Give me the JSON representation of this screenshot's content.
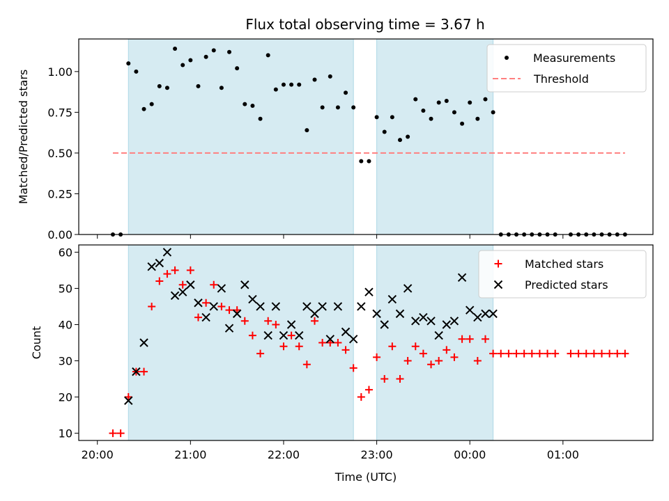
{
  "title": "Flux total observing time = 3.67 h",
  "colors": {
    "band": "#add8e6",
    "measurement": "#000000",
    "threshold": "#ff7f7f",
    "matched": "#ff0000",
    "predicted": "#000000"
  },
  "chart_data": [
    {
      "type": "scatter",
      "ylabel": "Matched/Predicted stars",
      "ylim": [
        0,
        1.2
      ],
      "yticks": [
        "0.00",
        "0.25",
        "0.50",
        "0.75",
        "1.00"
      ],
      "xlim": [
        "20:00",
        "01:50"
      ],
      "shaded_intervals": [
        [
          "20:20",
          "22:45"
        ],
        [
          "23:00",
          "00:15"
        ]
      ],
      "threshold": {
        "value": 0.5,
        "x_range": [
          "20:10",
          "01:40"
        ]
      },
      "legend": {
        "placement": "upper right",
        "entries": [
          "Measurements",
          "Threshold"
        ]
      },
      "series": [
        {
          "name": "Measurements",
          "x": [
            "20:10",
            "20:15",
            "20:20",
            "20:25",
            "20:30",
            "20:35",
            "20:40",
            "20:45",
            "20:50",
            "20:55",
            "21:00",
            "21:05",
            "21:10",
            "21:15",
            "21:20",
            "21:25",
            "21:30",
            "21:35",
            "21:40",
            "21:45",
            "21:50",
            "21:55",
            "22:00",
            "22:05",
            "22:10",
            "22:15",
            "22:20",
            "22:25",
            "22:30",
            "22:35",
            "22:40",
            "22:45",
            "22:50",
            "22:55",
            "23:00",
            "23:05",
            "23:10",
            "23:15",
            "23:20",
            "23:25",
            "23:30",
            "23:35",
            "23:40",
            "23:45",
            "23:50",
            "23:55",
            "00:00",
            "00:05",
            "00:10",
            "00:15",
            "00:20",
            "00:25",
            "00:30",
            "00:35",
            "00:40",
            "00:45",
            "00:50",
            "00:55",
            "01:05",
            "01:10",
            "01:15",
            "01:20",
            "01:25",
            "01:30",
            "01:35",
            "01:40"
          ],
          "y": [
            0,
            0,
            1.05,
            1.0,
            0.77,
            0.8,
            0.91,
            0.9,
            1.14,
            1.04,
            1.07,
            0.91,
            1.09,
            1.13,
            0.9,
            1.12,
            1.02,
            0.8,
            0.79,
            0.71,
            1.1,
            0.89,
            0.92,
            0.92,
            0.92,
            0.64,
            0.95,
            0.78,
            0.97,
            0.78,
            0.87,
            0.78,
            0.45,
            0.45,
            0.72,
            0.63,
            0.72,
            0.58,
            0.6,
            0.83,
            0.76,
            0.71,
            0.81,
            0.82,
            0.75,
            0.68,
            0.81,
            0.71,
            0.83,
            0.75,
            0,
            0,
            0,
            0,
            0,
            0,
            0,
            0,
            0,
            0,
            0,
            0,
            0,
            0,
            0,
            0
          ]
        }
      ]
    },
    {
      "type": "scatter",
      "ylabel": "Count",
      "xlabel": "Time (UTC)",
      "ylim": [
        8,
        62
      ],
      "yticks": [
        "10",
        "20",
        "30",
        "40",
        "50",
        "60"
      ],
      "xticks": [
        "20:00",
        "21:00",
        "22:00",
        "23:00",
        "00:00",
        "01:00"
      ],
      "xlim": [
        "20:00",
        "01:50"
      ],
      "shaded_intervals": [
        [
          "20:20",
          "22:45"
        ],
        [
          "23:00",
          "00:15"
        ]
      ],
      "legend": {
        "placement": "upper right",
        "entries": [
          "Matched stars",
          "Predicted stars"
        ]
      },
      "series": [
        {
          "name": "Matched stars",
          "marker": "plus",
          "x": [
            "20:10",
            "20:15",
            "20:20",
            "20:25",
            "20:30",
            "20:35",
            "20:40",
            "20:45",
            "20:50",
            "20:55",
            "21:00",
            "21:05",
            "21:10",
            "21:15",
            "21:20",
            "21:25",
            "21:30",
            "21:35",
            "21:40",
            "21:45",
            "21:50",
            "21:55",
            "22:00",
            "22:05",
            "22:10",
            "22:15",
            "22:20",
            "22:25",
            "22:30",
            "22:35",
            "22:40",
            "22:45",
            "22:50",
            "22:55",
            "23:00",
            "23:05",
            "23:10",
            "23:15",
            "23:20",
            "23:25",
            "23:30",
            "23:35",
            "23:40",
            "23:45",
            "23:50",
            "23:55",
            "00:00",
            "00:05",
            "00:10",
            "00:15",
            "00:20",
            "00:25",
            "00:30",
            "00:35",
            "00:40",
            "00:45",
            "00:50",
            "00:55",
            "01:05",
            "01:10",
            "01:15",
            "01:20",
            "01:25",
            "01:30",
            "01:35",
            "01:40"
          ],
          "y": [
            10,
            10,
            20,
            27,
            27,
            45,
            52,
            54,
            55,
            51,
            55,
            42,
            46,
            51,
            45,
            44,
            44,
            41,
            37,
            32,
            41,
            40,
            34,
            37,
            34,
            29,
            41,
            35,
            35,
            35,
            33,
            28,
            20,
            22,
            31,
            25,
            34,
            25,
            30,
            34,
            32,
            29,
            30,
            33,
            31,
            36,
            36,
            30,
            36,
            32,
            32,
            32,
            32,
            32,
            32,
            32,
            32,
            32,
            32,
            32,
            32,
            32,
            32,
            32,
            32,
            32
          ]
        },
        {
          "name": "Predicted stars",
          "marker": "x",
          "x": [
            "20:20",
            "20:25",
            "20:30",
            "20:35",
            "20:40",
            "20:45",
            "20:50",
            "20:55",
            "21:00",
            "21:05",
            "21:10",
            "21:15",
            "21:20",
            "21:25",
            "21:30",
            "21:35",
            "21:40",
            "21:45",
            "21:50",
            "21:55",
            "22:00",
            "22:05",
            "22:10",
            "22:15",
            "22:20",
            "22:25",
            "22:30",
            "22:35",
            "22:40",
            "22:45",
            "22:50",
            "22:55",
            "23:00",
            "23:05",
            "23:10",
            "23:15",
            "23:20",
            "23:25",
            "23:30",
            "23:35",
            "23:40",
            "23:45",
            "23:50",
            "23:55",
            "00:00",
            "00:05",
            "00:10",
            "00:15"
          ],
          "y": [
            19,
            27,
            35,
            56,
            57,
            60,
            48,
            49,
            51,
            46,
            42,
            45,
            50,
            39,
            43,
            51,
            47,
            45,
            37,
            45,
            37,
            40,
            37,
            45,
            43,
            45,
            36,
            45,
            38,
            36,
            45,
            49,
            43,
            40,
            47,
            43,
            50,
            41,
            42,
            41,
            37,
            40,
            41,
            53,
            44,
            42,
            43,
            43
          ]
        }
      ]
    }
  ]
}
